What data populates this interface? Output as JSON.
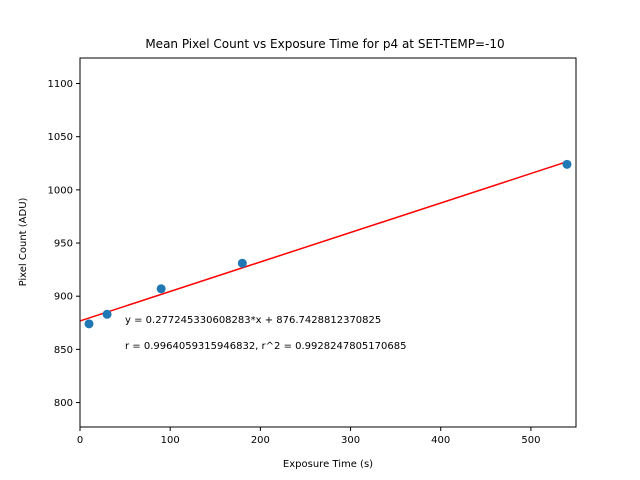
{
  "chart_data": {
    "type": "scatter",
    "title": "Mean Pixel Count vs Exposure Time for p4 at SET-TEMP=-10",
    "xlabel": "Exposure Time (s)",
    "ylabel": "Pixel Count (ADU)",
    "xlim": [
      0,
      550
    ],
    "ylim": [
      777,
      1124
    ],
    "xticks": [
      0,
      100,
      200,
      300,
      400,
      500
    ],
    "yticks": [
      800,
      850,
      900,
      950,
      1000,
      1050,
      1100
    ],
    "grid": false,
    "series": [
      {
        "type": "scatter",
        "color": "#1f77b4",
        "x": [
          10,
          30,
          90,
          180,
          540
        ],
        "y": [
          874,
          883,
          907,
          931,
          1024
        ]
      },
      {
        "type": "line",
        "color": "#ff0000",
        "slope": 0.277245330608283,
        "intercept": 876.7428812370825,
        "x": [
          0,
          540
        ],
        "y": [
          876.74,
          1026.46
        ]
      }
    ],
    "annotations": [
      "y = 0.277245330608283*x + 876.7428812370825",
      "r = 0.9964059315946832, r^2 = 0.9928247805170685"
    ]
  }
}
